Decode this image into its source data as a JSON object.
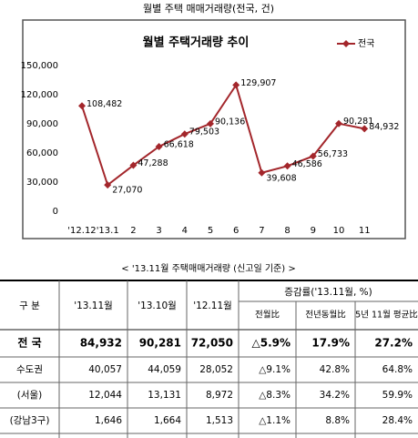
{
  "header": {
    "title": "월별 주택 매매거래량(전국, 건)"
  },
  "chart_data": {
    "type": "line",
    "title": "월별 주택거래량 추이",
    "categories": [
      "'12.12",
      "'13.1",
      "2",
      "3",
      "4",
      "5",
      "6",
      "7",
      "8",
      "9",
      "10",
      "11"
    ],
    "series": [
      {
        "name": "전국",
        "color": "#a3262b",
        "values": [
          108482,
          27070,
          47288,
          66618,
          79503,
          90136,
          129907,
          39608,
          46586,
          56733,
          90281,
          84932
        ],
        "value_labels": [
          "108,482",
          "27,070",
          "47,288",
          "66,618",
          "79,503",
          "90,136",
          "129,907",
          "39,608",
          "46,586",
          "56,733",
          "90,281",
          "84,932"
        ]
      }
    ],
    "ylim": [
      0,
      150000
    ],
    "yticks": [
      0,
      {
        "value": 30000,
        "label": "30,000"
      },
      {
        "value": 60000,
        "label": "60,000"
      },
      {
        "value": 90000,
        "label": "90,000"
      },
      {
        "value": 120000,
        "label": "120,000"
      },
      {
        "value": 150000,
        "label": "150,000"
      }
    ],
    "grid": false,
    "legend": "top-right"
  },
  "table": {
    "caption": "< '13.11월 주택매매거래량 (신고일 기준) >",
    "header": [
      "구 분",
      "'13.11월",
      "'13.10월",
      "'12.11월",
      "증감률('13.11월, %)"
    ],
    "subheader": [
      "전월比",
      "전년동월比",
      "5년 11월 평균比"
    ],
    "rows": [
      [
        "전 국",
        "84,932",
        "90,281",
        "72,050",
        "△5.9%",
        "17.9%",
        "27.2%"
      ],
      [
        "수도권",
        "40,057",
        "44,059",
        "28,052",
        "△9.1%",
        "42.8%",
        "64.8%"
      ],
      [
        "(서울)",
        "12,044",
        "13,131",
        "8,972",
        "△8.3%",
        "34.2%",
        "59.9%"
      ],
      [
        "(강남3구)",
        "1,646",
        "1,664",
        "1,513",
        "△1.1%",
        "8.8%",
        "28.4%"
      ]
    ]
  }
}
